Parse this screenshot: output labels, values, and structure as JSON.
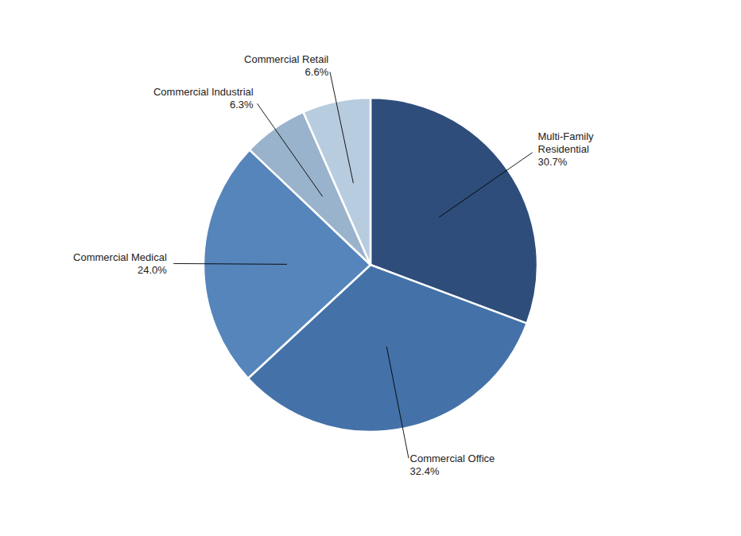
{
  "chart_data": {
    "type": "pie",
    "categories": [
      "Multi-Family\nResidential",
      "Commercial Office",
      "Commercial Medical",
      "Commercial Industrial",
      "Commercial Retail"
    ],
    "values": [
      30.7,
      32.4,
      24.0,
      6.3,
      6.6
    ],
    "value_labels": [
      "30.7%",
      "32.4%",
      "24.0%",
      "6.3%",
      "6.6%"
    ],
    "colors": [
      "#2e4d7b",
      "#4472a8",
      "#5585bb",
      "#9ab3cc",
      "#b8cce0"
    ],
    "data_labels": true
  }
}
